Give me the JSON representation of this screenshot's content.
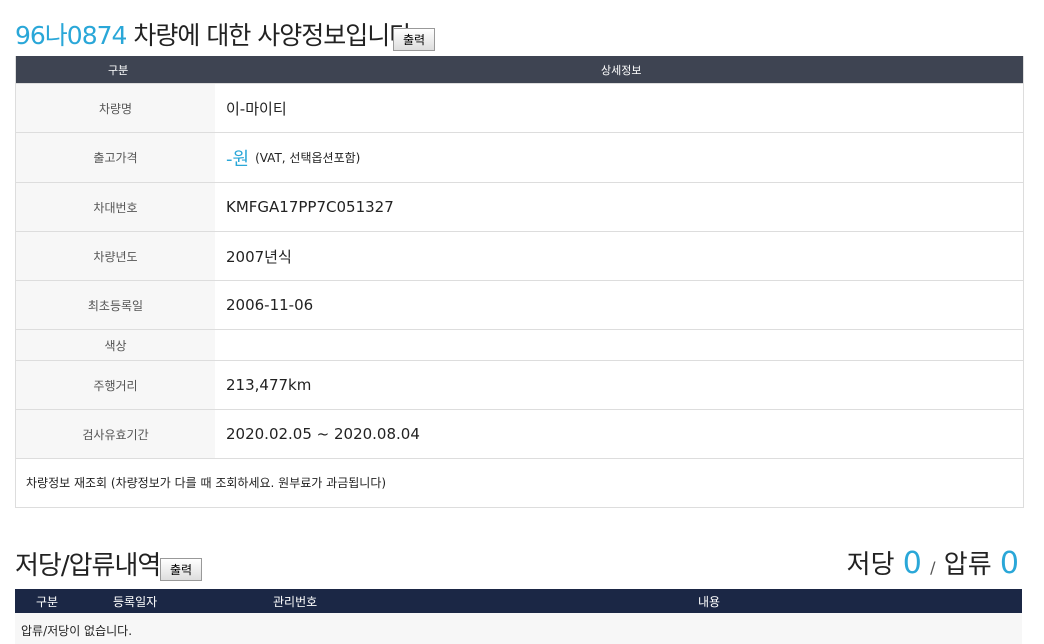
{
  "vehicle": {
    "plate": "96나0874",
    "title": "차량에 대한 사양정보입니다.",
    "print_button": "출력",
    "header": {
      "label": "구분",
      "detail": "상세정보"
    },
    "rows": [
      {
        "label": "차량명",
        "value": "이-마이티"
      },
      {
        "label": "출고가격",
        "value": "-원",
        "note": "(VAT, 선택옵션포함)"
      },
      {
        "label": "차대번호",
        "value": "KMFGA17PP7C051327"
      },
      {
        "label": "차량년도",
        "value": "2007년식"
      },
      {
        "label": "최초등록일",
        "value": "2006-11-06"
      },
      {
        "label": "색상"
      },
      {
        "label": "주행거리",
        "value": "213,477km"
      },
      {
        "label": "검사유효기간",
        "value": "2020.02.05 ~ 2020.08.04"
      }
    ],
    "refresh_note": "차량정보 재조회 (차량정보가 다를 때 조회하세요. 원부료가 과금됩니다)"
  },
  "liens": {
    "title": "저당/압류내역",
    "print_button": "출력",
    "mortgage_label": "저당",
    "mortgage_count": 0,
    "separator": "/",
    "seizure_label": "압류",
    "seizure_count": 0,
    "columns": [
      "구분",
      "등록일자",
      "관리번호",
      "내용"
    ],
    "empty_message": "압류/저당이 없습니다."
  }
}
